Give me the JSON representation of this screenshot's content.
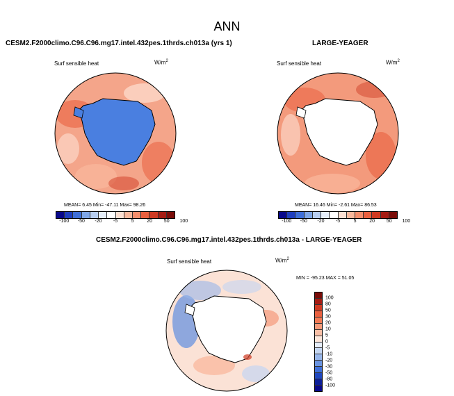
{
  "figure": {
    "main_title": "ANN"
  },
  "panels": [
    {
      "title": "CESM2.F2000climo.C96.C96.mg17.intel.432pes.1thrds.ch013a (yrs 1)",
      "variable": "Surf sensible heat",
      "units": "W/m",
      "units_exp": "2",
      "stats": "MEAN=   6.45  Min= -47.11  Max=  98.26",
      "ocean_color": "#f4a58a",
      "land_color": "#4a7fe0"
    },
    {
      "title": "LARGE-YEAGER",
      "variable": "Surf sensible heat",
      "units": "W/m",
      "units_exp": "2",
      "stats": "MEAN=  16.46  Min=  -2.61  Max=  86.53",
      "ocean_color": "#f39a7c",
      "land_color": "#ffffff"
    },
    {
      "title": "CESM2.F2000climo.C96.C96.mg17.intel.432pes.1thrds.ch013a - LARGE-YEAGER",
      "variable": "Surf sensible heat",
      "units": "W/m",
      "units_exp": "2",
      "stats": "MIN = -95.23 MAX =  51.05",
      "ocean_color": "#fbe2d6",
      "land_color": "#ffffff"
    }
  ],
  "colorbar_abs": {
    "levels": [
      "-100",
      "-50",
      "-20",
      "-5",
      "5",
      "20",
      "50",
      "100"
    ],
    "colors": [
      "#08088a",
      "#1f3fbf",
      "#3f6fd8",
      "#7fa6e6",
      "#b8cef0",
      "#e6eefa",
      "#ffffff",
      "#fde0d2",
      "#f9b89c",
      "#f48e6c",
      "#e9603f",
      "#cf3a22",
      "#a51b12",
      "#7a0c08"
    ]
  },
  "colorbar_diff": {
    "levels": [
      "100",
      "80",
      "50",
      "30",
      "20",
      "10",
      "5",
      "0",
      "-5",
      "-10",
      "-20",
      "-30",
      "-50",
      "-80",
      "-100"
    ],
    "colors": [
      "#7a0c08",
      "#a51b12",
      "#cf3a22",
      "#e9603f",
      "#f27a55",
      "#f59a7a",
      "#f9bfa6",
      "#fde6da",
      "#e6eefa",
      "#c4d6f2",
      "#97b6ea",
      "#6a93df",
      "#3f6fd8",
      "#1f47bf",
      "#0c1f99",
      "#08088a"
    ]
  }
}
